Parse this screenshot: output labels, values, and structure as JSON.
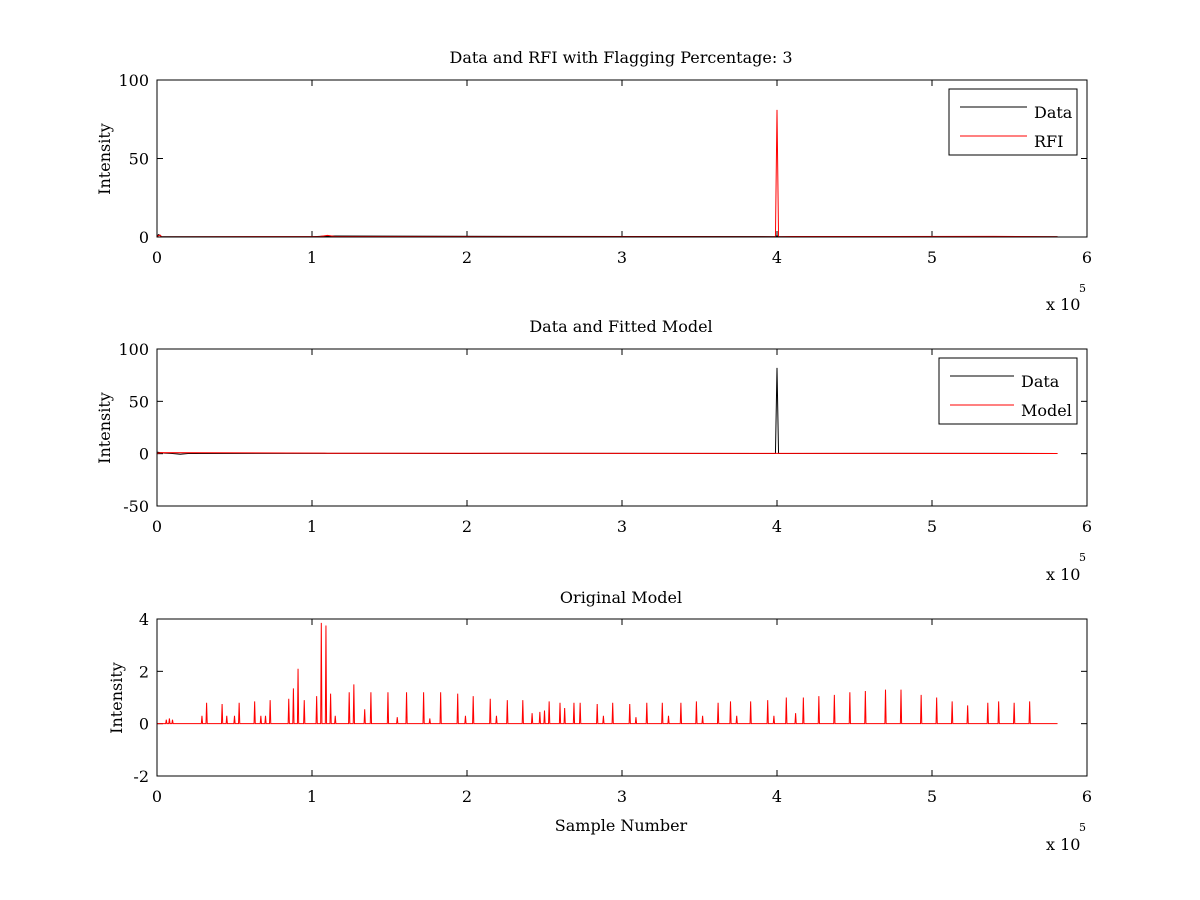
{
  "colors": {
    "data": "#000000",
    "rfi": "#ff0000",
    "model": "#ff0000",
    "background": "#ffffff"
  },
  "chart_data": [
    {
      "type": "line",
      "title": "Data and RFI with Flagging Percentage: 3",
      "xlabel": "",
      "ylabel": "Intensity",
      "x_exponent_label": "x 10",
      "x_exponent": "5",
      "xlim": [
        0,
        6
      ],
      "ylim": [
        0,
        100
      ],
      "xticks": [
        0,
        1,
        2,
        3,
        4,
        5,
        6
      ],
      "yticks": [
        0,
        50,
        100
      ],
      "grid": false,
      "legend_position": "top-right",
      "series": [
        {
          "name": "Data",
          "color": "#000000",
          "x": [
            0,
            0.01,
            0.02,
            0.03,
            1.0,
            1.1,
            3.99,
            4.0,
            4.01,
            5.81
          ],
          "y": [
            0.5,
            1.5,
            1.0,
            0.2,
            0.2,
            0.6,
            0.2,
            0.8,
            0.2,
            0.2
          ]
        },
        {
          "name": "RFI",
          "color": "#ff0000",
          "x": [
            0,
            0.02,
            0.03,
            1.05,
            1.1,
            1.15,
            3.8,
            3.99,
            4.0,
            4.01,
            4.1,
            5.4,
            5.81
          ],
          "y": [
            0.5,
            1.2,
            0.1,
            0.3,
            1.0,
            0.3,
            0.2,
            0.2,
            81,
            0.2,
            0.3,
            0.4,
            0.2
          ]
        }
      ]
    },
    {
      "type": "line",
      "title": "Data and Fitted Model",
      "xlabel": "",
      "ylabel": "Intensity",
      "x_exponent_label": "x 10",
      "x_exponent": "5",
      "xlim": [
        0,
        6
      ],
      "ylim": [
        -50,
        100
      ],
      "xticks": [
        0,
        1,
        2,
        3,
        4,
        5,
        6
      ],
      "yticks": [
        -50,
        0,
        50,
        100
      ],
      "grid": false,
      "legend_position": "top-right",
      "series": [
        {
          "name": "Data",
          "color": "#000000",
          "x": [
            0,
            0.02,
            0.05,
            0.1,
            0.15,
            0.2,
            1.0,
            2.0,
            3.0,
            3.99,
            4.0,
            4.01,
            5.0,
            5.81
          ],
          "y": [
            1.5,
            1.0,
            0.5,
            0.2,
            -0.5,
            0.2,
            0.3,
            0.2,
            0.3,
            0.2,
            82,
            0.2,
            0.3,
            0.2
          ]
        },
        {
          "name": "Model",
          "color": "#ff0000",
          "x": [
            0,
            0.02,
            1.08,
            1.1,
            5.81
          ],
          "y": [
            0.2,
            1.0,
            0.5,
            0.4,
            0.2
          ]
        }
      ]
    },
    {
      "type": "line",
      "title": "Original Model",
      "xlabel": "Sample Number",
      "ylabel": "Intensity",
      "x_exponent_label": "x 10",
      "x_exponent": "5",
      "xlim": [
        0,
        6
      ],
      "ylim": [
        -2,
        4
      ],
      "xticks": [
        0,
        1,
        2,
        3,
        4,
        5,
        6
      ],
      "yticks": [
        -2,
        0,
        2,
        4
      ],
      "grid": false,
      "legend_position": "none",
      "baseline": 0,
      "x_end": 5.81,
      "series": [
        {
          "name": "",
          "color": "#ff0000",
          "peaks": {
            "x": [
              0.06,
              0.08,
              0.1,
              0.29,
              0.32,
              0.42,
              0.45,
              0.5,
              0.53,
              0.63,
              0.67,
              0.7,
              0.73,
              0.85,
              0.88,
              0.91,
              0.95,
              1.03,
              1.06,
              1.09,
              1.12,
              1.15,
              1.24,
              1.27,
              1.34,
              1.38,
              1.49,
              1.55,
              1.61,
              1.72,
              1.76,
              1.83,
              1.94,
              1.99,
              2.04,
              2.15,
              2.19,
              2.26,
              2.36,
              2.42,
              2.47,
              2.5,
              2.53,
              2.6,
              2.63,
              2.69,
              2.73,
              2.84,
              2.88,
              2.94,
              3.05,
              3.09,
              3.16,
              3.26,
              3.3,
              3.38,
              3.48,
              3.52,
              3.62,
              3.7,
              3.74,
              3.83,
              3.94,
              3.98,
              4.06,
              4.12,
              4.17,
              4.27,
              4.37,
              4.47,
              4.57,
              4.7,
              4.8,
              4.93,
              5.03,
              5.13,
              5.23,
              5.36,
              5.43,
              5.53,
              5.63
            ],
            "y": [
              0.15,
              0.2,
              0.15,
              0.3,
              0.8,
              0.75,
              0.3,
              0.3,
              0.8,
              0.85,
              0.3,
              0.3,
              0.9,
              0.95,
              1.35,
              2.1,
              0.9,
              1.05,
              3.85,
              3.75,
              1.15,
              0.3,
              1.2,
              1.5,
              0.55,
              1.2,
              1.2,
              0.25,
              1.2,
              1.2,
              0.2,
              1.2,
              1.15,
              0.3,
              1.05,
              0.95,
              0.3,
              0.9,
              0.9,
              0.4,
              0.45,
              0.5,
              0.85,
              0.8,
              0.6,
              0.8,
              0.8,
              0.75,
              0.3,
              0.8,
              0.75,
              0.25,
              0.8,
              0.8,
              0.3,
              0.8,
              0.85,
              0.3,
              0.8,
              0.85,
              0.3,
              0.85,
              0.9,
              0.3,
              1.0,
              0.4,
              1.0,
              1.05,
              1.1,
              1.2,
              1.25,
              1.3,
              1.3,
              1.1,
              1.0,
              0.85,
              0.7,
              0.8,
              0.85,
              0.8,
              0.85
            ]
          }
        }
      ]
    }
  ]
}
